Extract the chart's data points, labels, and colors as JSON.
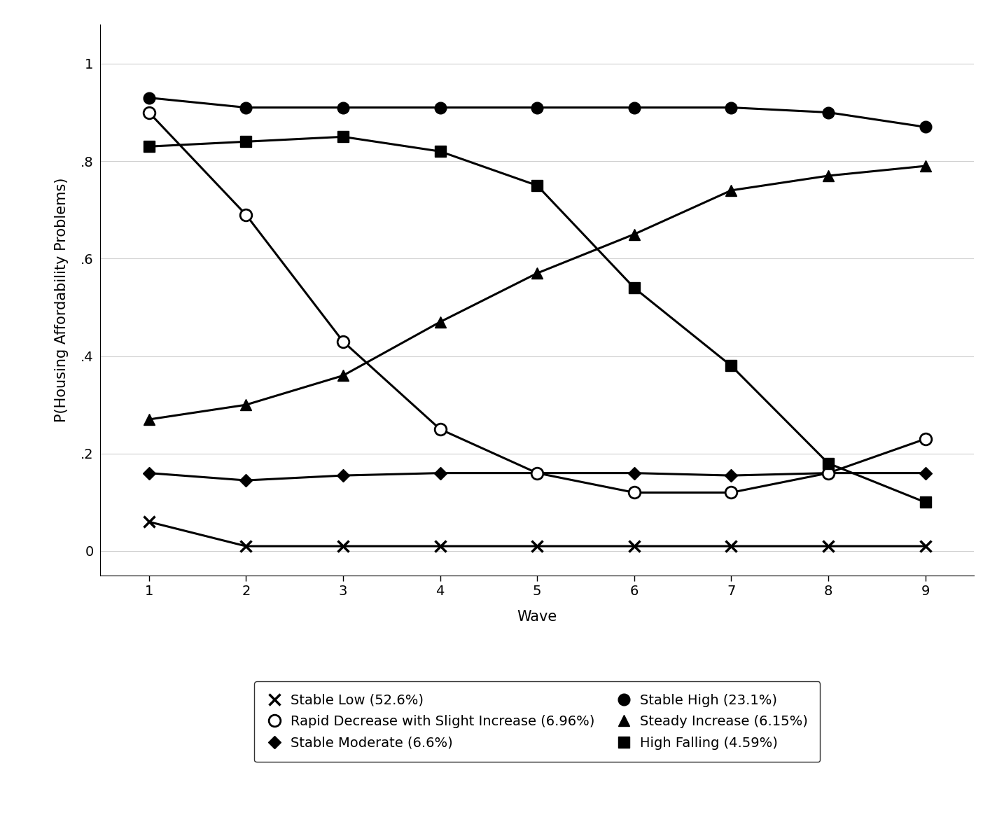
{
  "waves": [
    1,
    2,
    3,
    4,
    5,
    6,
    7,
    8,
    9
  ],
  "series": {
    "stable_low": {
      "label": "Stable Low (52.6%)",
      "values": [
        0.06,
        0.01,
        0.01,
        0.01,
        0.01,
        0.01,
        0.01,
        0.01,
        0.01
      ]
    },
    "stable_moderate": {
      "label": "Stable Moderate (6.6%)",
      "values": [
        0.16,
        0.145,
        0.155,
        0.16,
        0.16,
        0.16,
        0.155,
        0.16,
        0.16
      ]
    },
    "steady_increase": {
      "label": "Steady Increase (6.15%)",
      "values": [
        0.27,
        0.3,
        0.36,
        0.47,
        0.57,
        0.65,
        0.74,
        0.77,
        0.79
      ]
    },
    "rapid_decrease": {
      "label": "Rapid Decrease with Slight Increase (6.96%)",
      "values": [
        0.9,
        0.69,
        0.43,
        0.25,
        0.16,
        0.12,
        0.12,
        0.16,
        0.23
      ]
    },
    "stable_high": {
      "label": "Stable High (23.1%)",
      "values": [
        0.93,
        0.91,
        0.91,
        0.91,
        0.91,
        0.91,
        0.91,
        0.9,
        0.87
      ]
    },
    "high_falling": {
      "label": "High Falling (4.59%)",
      "values": [
        0.83,
        0.84,
        0.85,
        0.82,
        0.75,
        0.54,
        0.38,
        0.18,
        0.1
      ]
    }
  },
  "xlabel": "Wave",
  "ylabel": "P(Housing Affordability Problems)",
  "xlim": [
    0.5,
    9.5
  ],
  "ylim": [
    -0.05,
    1.08
  ],
  "yticks": [
    0,
    0.2,
    0.4,
    0.6,
    0.8,
    1.0
  ],
  "ytick_labels": [
    "0",
    ".2",
    ".4",
    ".6",
    ".8",
    "1"
  ],
  "xticks": [
    1,
    2,
    3,
    4,
    5,
    6,
    7,
    8,
    9
  ],
  "color": "black",
  "linewidth": 2.2,
  "markersize": 10,
  "grid_color": "#d0d0d0",
  "background_color": "#ffffff",
  "legend_fontsize": 14,
  "axis_fontsize": 15,
  "tick_fontsize": 14
}
